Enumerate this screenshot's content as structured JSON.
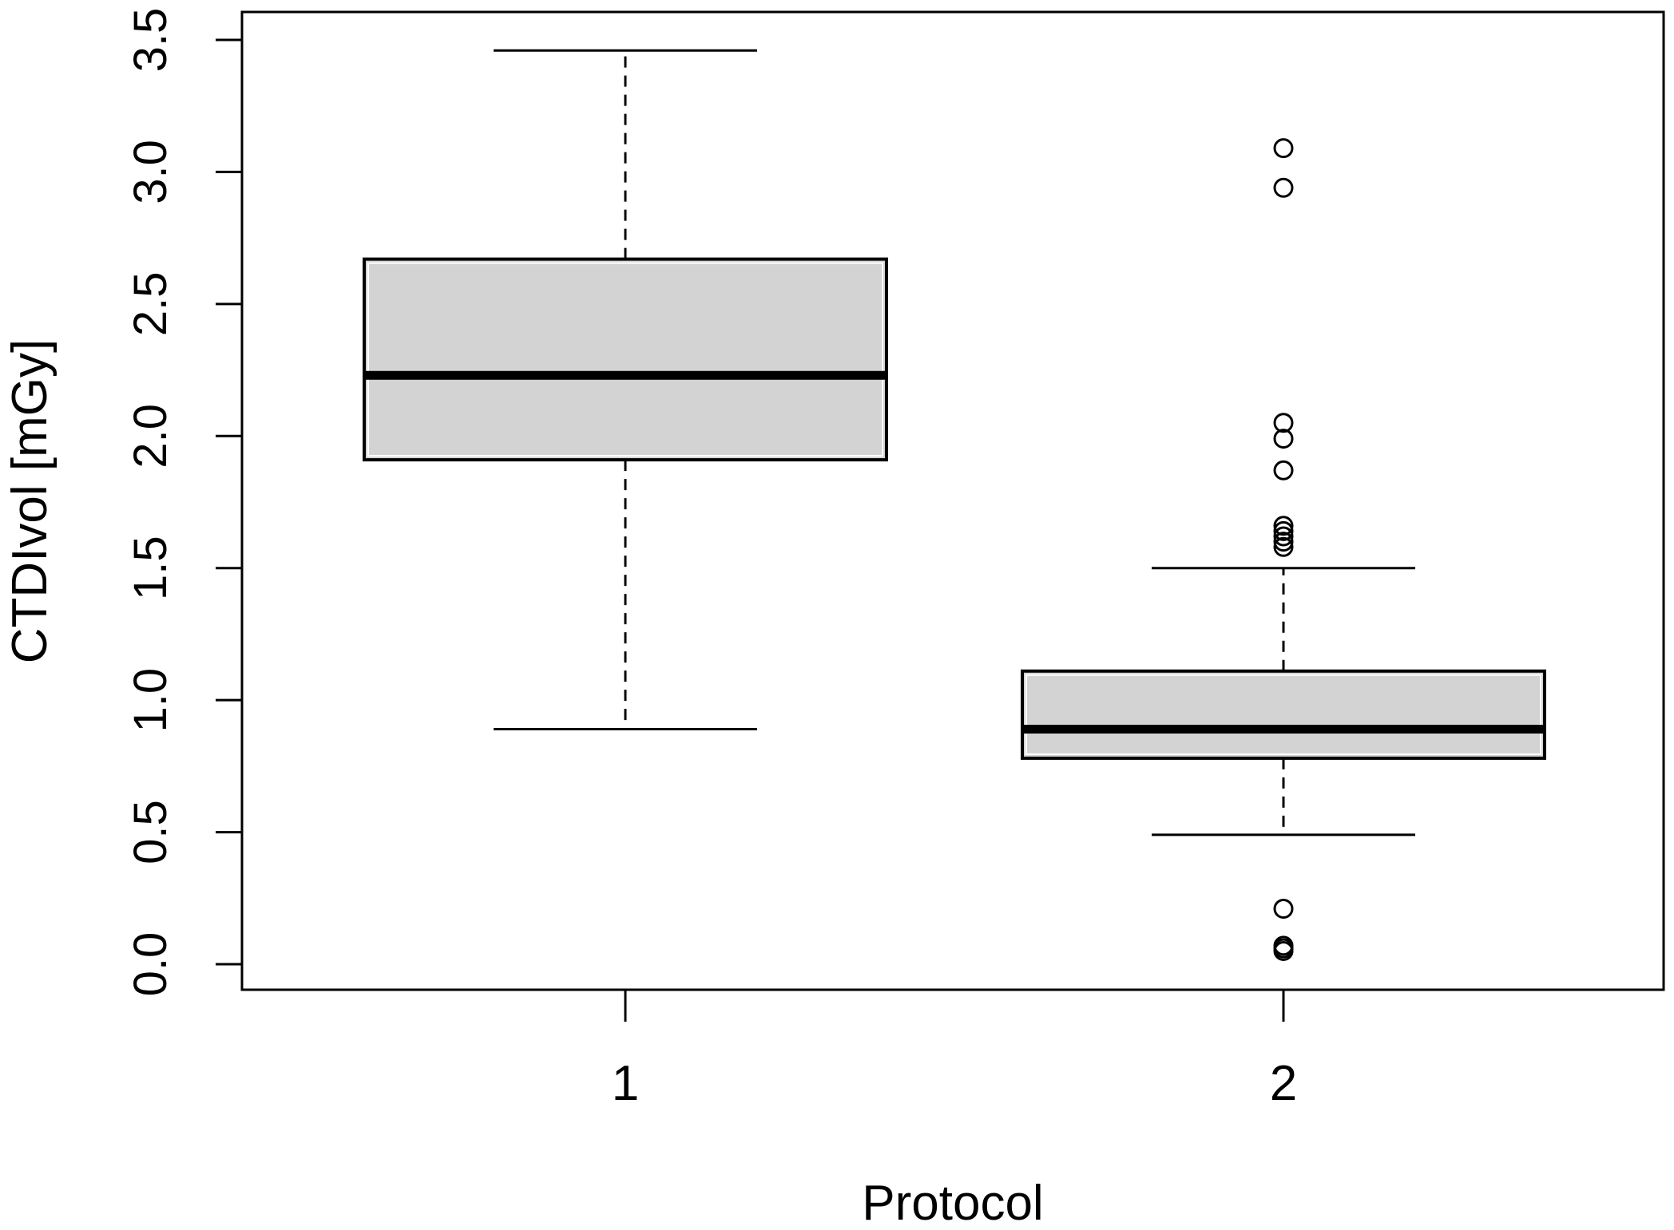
{
  "chart_data": {
    "type": "boxplot",
    "xlabel": "Protocol",
    "ylabel": "CTDIvol [mGy]",
    "ylim": [
      -0.1,
      3.6
    ],
    "yticks": [
      "0.0",
      "0.5",
      "1.0",
      "1.5",
      "2.0",
      "2.5",
      "3.0",
      "3.5"
    ],
    "ytick_values": [
      0,
      0.5,
      1.0,
      1.5,
      2.0,
      2.5,
      3.0,
      3.5
    ],
    "categories": [
      "1",
      "2"
    ],
    "grid": false,
    "box_fill": "#d3d3d3",
    "boxes": [
      {
        "category": "1",
        "whisker_low": 0.89,
        "q1": 1.91,
        "median": 2.23,
        "q3": 2.67,
        "whisker_high": 3.46,
        "outliers": []
      },
      {
        "category": "2",
        "whisker_low": 0.49,
        "q1": 0.78,
        "median": 0.89,
        "q3": 1.11,
        "whisker_high": 1.5,
        "outliers": [
          3.09,
          2.94,
          2.05,
          1.99,
          1.87,
          1.66,
          1.64,
          1.62,
          1.6,
          1.58,
          0.21,
          0.07,
          0.06,
          0.05
        ]
      }
    ]
  }
}
